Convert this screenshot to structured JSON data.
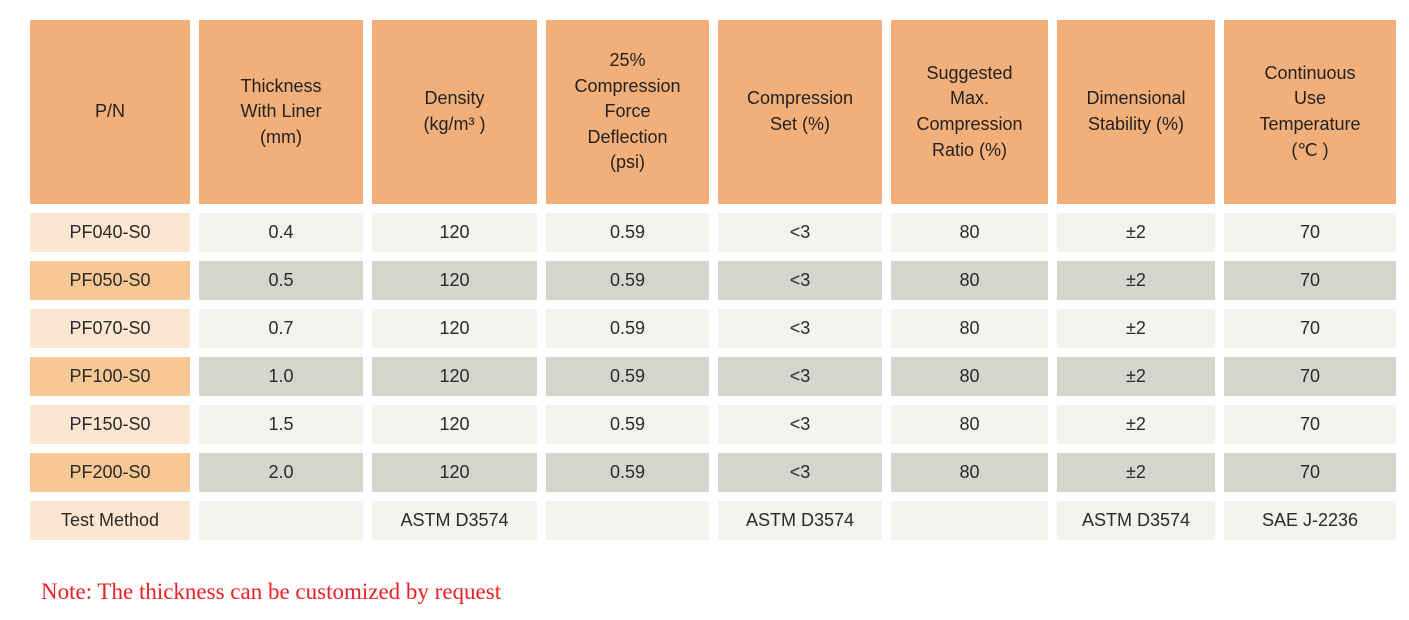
{
  "table": {
    "headers": [
      "P/N",
      "Thickness\nWith Liner\n(mm)",
      "Density\n(kg/m³ )",
      "25%\nCompression\nForce\nDeflection\n(psi)",
      "Compression\nSet (%)",
      "Suggested\nMax.\nCompression\nRatio (%)",
      "Dimensional\nStability (%)",
      "Continuous\nUse\nTemperature\n(℃ )"
    ],
    "rows": [
      {
        "pn": "PF040-S0",
        "values": [
          "0.4",
          "120",
          "0.59",
          "<3",
          "80",
          "±2",
          "70"
        ]
      },
      {
        "pn": "PF050-S0",
        "values": [
          "0.5",
          "120",
          "0.59",
          "<3",
          "80",
          "±2",
          "70"
        ]
      },
      {
        "pn": "PF070-S0",
        "values": [
          "0.7",
          "120",
          "0.59",
          "<3",
          "80",
          "±2",
          "70"
        ]
      },
      {
        "pn": "PF100-S0",
        "values": [
          "1.0",
          "120",
          "0.59",
          "<3",
          "80",
          "±2",
          "70"
        ]
      },
      {
        "pn": "PF150-S0",
        "values": [
          "1.5",
          "120",
          "0.59",
          "<3",
          "80",
          "±2",
          "70"
        ]
      },
      {
        "pn": "PF200-S0",
        "values": [
          "2.0",
          "120",
          "0.59",
          "<3",
          "80",
          "±2",
          "70"
        ]
      }
    ],
    "test_method": {
      "label": "Test Method",
      "values": [
        "",
        "ASTM D3574",
        "",
        "ASTM D3574",
        "",
        "ASTM D3574",
        "SAE J-2236"
      ]
    }
  },
  "note": "Note: The thickness can be customized by request",
  "colors": {
    "header_bg": "#F2AF7A",
    "pn_light": "#FBE7D1",
    "pn_dark": "#F7C795",
    "row_light": "#F3F3EE",
    "row_dark": "#D5D5CD",
    "note_red": "#EC2024"
  }
}
